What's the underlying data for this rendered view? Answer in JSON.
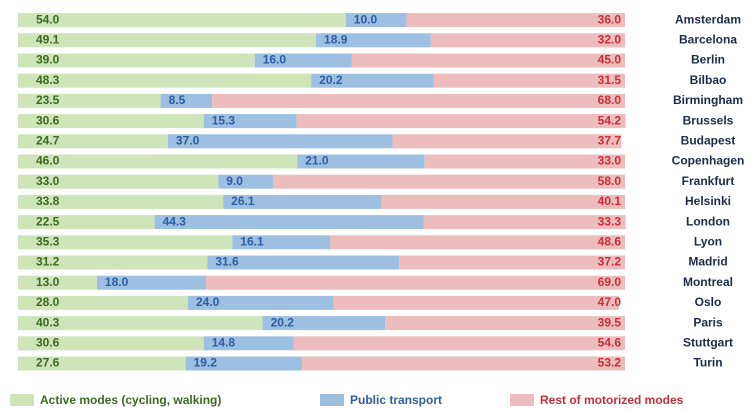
{
  "chart_data": {
    "type": "stacked_bar_horizontal",
    "categories": [
      "Amsterdam",
      "Barcelona",
      "Berlin",
      "Bilbao",
      "Birmingham",
      "Brussels",
      "Budapest",
      "Copenhagen",
      "Frankfurt",
      "Helsinki",
      "London",
      "Lyon",
      "Madrid",
      "Montreal",
      "Oslo",
      "Paris",
      "Stuttgart",
      "Turin"
    ],
    "series": [
      {
        "name": "Active modes (cycling, walking)",
        "color": "#cde5b9",
        "label_color": "#3b6a1e",
        "values": [
          54.0,
          49.1,
          39.0,
          48.3,
          23.5,
          30.6,
          24.7,
          46.0,
          33.0,
          33.8,
          22.5,
          35.3,
          31.2,
          13.0,
          28.0,
          40.3,
          30.6,
          27.6
        ],
        "value_labels": [
          "54.0",
          "49.1",
          "39.0",
          "48.3",
          "23.5",
          "30.6",
          "24.7",
          "46.0",
          "33.0",
          "33.8",
          "22.5",
          "35.3",
          "31.2",
          "13.0",
          "28.0",
          "40.3",
          "30.6",
          "27.6"
        ]
      },
      {
        "name": "Public transport",
        "color": "#9dbfe2",
        "label_color": "#2c5d9f",
        "values": [
          10.0,
          18.9,
          16.0,
          20.2,
          8.5,
          15.3,
          37.0,
          21.0,
          9.0,
          26.1,
          44.3,
          16.1,
          31.6,
          18.0,
          24.0,
          20.2,
          14.8,
          19.2
        ],
        "value_labels": [
          "10.0",
          "18.9",
          "16.0",
          "20.2",
          "8.5",
          "15.3",
          "37.0",
          "21.0",
          "9.0",
          "26.1",
          "44.3",
          "16.1",
          "31.6",
          "18.0",
          "24.0",
          "20.2",
          "14.8",
          "19.2"
        ]
      },
      {
        "name": "Rest of motorized modes",
        "color": "#edbcbc",
        "label_color": "#c62f3a",
        "values": [
          36.0,
          32.0,
          45.0,
          31.5,
          68.0,
          54.2,
          37.7,
          33.0,
          58.0,
          40.1,
          33.3,
          48.6,
          37.2,
          69.0,
          47.0,
          39.5,
          54.6,
          53.2
        ],
        "value_labels": [
          "36.0",
          "32.0",
          "45.0",
          "31.5",
          "68.0",
          "54.2",
          "37.7",
          "33.0",
          "58.0",
          "40.1",
          "33.3",
          "48.6",
          "37.2",
          "69.0",
          "47.0",
          "39.5",
          "54.6",
          "53.2"
        ]
      }
    ],
    "xlim": [
      0,
      100
    ]
  }
}
